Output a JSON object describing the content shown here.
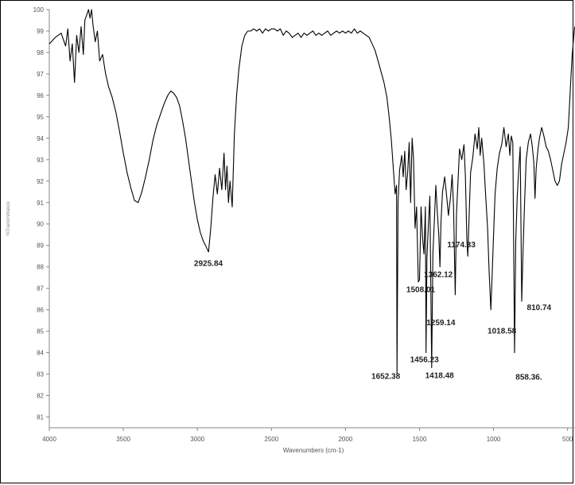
{
  "chart_data": {
    "type": "line",
    "xlabel": "Wavenumbers (cm-1)",
    "ylabel": "%Transmittance",
    "xlim": [
      4000,
      450
    ],
    "ylim": [
      80.5,
      100
    ],
    "x_ticks": [
      4000,
      3500,
      3000,
      2500,
      2000,
      1500,
      1000,
      500
    ],
    "y_ticks": [
      81,
      82,
      83,
      84,
      85,
      86,
      87,
      88,
      89,
      90,
      91,
      92,
      93,
      94,
      95,
      96,
      97,
      98,
      99,
      100
    ],
    "grid": false,
    "x_direction": "descending",
    "series": [
      {
        "color": "#000000",
        "points": [
          [
            4000,
            98.4
          ],
          [
            3960,
            98.7
          ],
          [
            3920,
            98.9
          ],
          [
            3890,
            98.3
          ],
          [
            3875,
            99.1
          ],
          [
            3860,
            97.6
          ],
          [
            3845,
            98.4
          ],
          [
            3830,
            96.6
          ],
          [
            3815,
            98.8
          ],
          [
            3800,
            98.0
          ],
          [
            3785,
            99.2
          ],
          [
            3770,
            97.9
          ],
          [
            3760,
            99.5
          ],
          [
            3745,
            99.8
          ],
          [
            3735,
            100.0
          ],
          [
            3725,
            99.6
          ],
          [
            3715,
            100.0
          ],
          [
            3705,
            99.3
          ],
          [
            3690,
            98.5
          ],
          [
            3675,
            99.0
          ],
          [
            3660,
            97.6
          ],
          [
            3640,
            97.9
          ],
          [
            3620,
            97.0
          ],
          [
            3600,
            96.4
          ],
          [
            3575,
            95.9
          ],
          [
            3550,
            95.2
          ],
          [
            3525,
            94.3
          ],
          [
            3500,
            93.3
          ],
          [
            3475,
            92.4
          ],
          [
            3450,
            91.7
          ],
          [
            3425,
            91.1
          ],
          [
            3400,
            91.0
          ],
          [
            3375,
            91.5
          ],
          [
            3350,
            92.2
          ],
          [
            3325,
            93.0
          ],
          [
            3300,
            93.9
          ],
          [
            3275,
            94.6
          ],
          [
            3250,
            95.1
          ],
          [
            3225,
            95.6
          ],
          [
            3200,
            96.0
          ],
          [
            3180,
            96.2
          ],
          [
            3160,
            96.1
          ],
          [
            3140,
            95.9
          ],
          [
            3120,
            95.5
          ],
          [
            3100,
            94.8
          ],
          [
            3080,
            94.0
          ],
          [
            3060,
            93.0
          ],
          [
            3040,
            92.0
          ],
          [
            3020,
            91.0
          ],
          [
            3000,
            90.2
          ],
          [
            2980,
            89.6
          ],
          [
            2960,
            89.2
          ],
          [
            2945,
            89.0
          ],
          [
            2925,
            88.7
          ],
          [
            2910,
            89.8
          ],
          [
            2895,
            91.2
          ],
          [
            2880,
            92.3
          ],
          [
            2865,
            91.4
          ],
          [
            2850,
            92.6
          ],
          [
            2835,
            91.6
          ],
          [
            2820,
            93.3
          ],
          [
            2810,
            91.6
          ],
          [
            2800,
            92.7
          ],
          [
            2790,
            91.0
          ],
          [
            2780,
            92.0
          ],
          [
            2765,
            90.8
          ],
          [
            2750,
            94.2
          ],
          [
            2735,
            96.0
          ],
          [
            2720,
            97.2
          ],
          [
            2700,
            98.3
          ],
          [
            2680,
            98.8
          ],
          [
            2660,
            99.0
          ],
          [
            2640,
            99.0
          ],
          [
            2620,
            99.1
          ],
          [
            2600,
            99.0
          ],
          [
            2580,
            99.1
          ],
          [
            2560,
            98.9
          ],
          [
            2540,
            99.1
          ],
          [
            2520,
            99.0
          ],
          [
            2500,
            99.1
          ],
          [
            2480,
            99.1
          ],
          [
            2460,
            99.0
          ],
          [
            2440,
            99.1
          ],
          [
            2420,
            98.8
          ],
          [
            2400,
            99.0
          ],
          [
            2380,
            98.9
          ],
          [
            2360,
            98.7
          ],
          [
            2340,
            98.8
          ],
          [
            2320,
            98.9
          ],
          [
            2300,
            98.7
          ],
          [
            2280,
            98.9
          ],
          [
            2260,
            98.8
          ],
          [
            2240,
            98.9
          ],
          [
            2220,
            99.0
          ],
          [
            2200,
            98.8
          ],
          [
            2180,
            98.9
          ],
          [
            2160,
            98.8
          ],
          [
            2140,
            98.9
          ],
          [
            2120,
            99.0
          ],
          [
            2100,
            98.8
          ],
          [
            2080,
            98.9
          ],
          [
            2060,
            99.0
          ],
          [
            2040,
            98.9
          ],
          [
            2020,
            99.0
          ],
          [
            2000,
            98.9
          ],
          [
            1980,
            99.0
          ],
          [
            1960,
            98.9
          ],
          [
            1940,
            99.1
          ],
          [
            1920,
            98.9
          ],
          [
            1900,
            99.0
          ],
          [
            1880,
            98.9
          ],
          [
            1860,
            98.8
          ],
          [
            1840,
            98.7
          ],
          [
            1820,
            98.4
          ],
          [
            1800,
            98.1
          ],
          [
            1780,
            97.6
          ],
          [
            1760,
            97.1
          ],
          [
            1740,
            96.6
          ],
          [
            1720,
            95.9
          ],
          [
            1705,
            95.0
          ],
          [
            1690,
            93.9
          ],
          [
            1675,
            92.4
          ],
          [
            1665,
            91.4
          ],
          [
            1655,
            91.8
          ],
          [
            1652,
            83.0
          ],
          [
            1645,
            91.0
          ],
          [
            1635,
            92.5
          ],
          [
            1620,
            93.2
          ],
          [
            1610,
            92.2
          ],
          [
            1600,
            93.4
          ],
          [
            1590,
            91.6
          ],
          [
            1580,
            92.4
          ],
          [
            1570,
            93.8
          ],
          [
            1560,
            91.0
          ],
          [
            1550,
            94.0
          ],
          [
            1540,
            93.0
          ],
          [
            1530,
            89.8
          ],
          [
            1520,
            90.8
          ],
          [
            1508,
            87.3
          ],
          [
            1500,
            87.4
          ],
          [
            1490,
            90.8
          ],
          [
            1480,
            89.4
          ],
          [
            1470,
            88.6
          ],
          [
            1460,
            90.8
          ],
          [
            1456,
            84.0
          ],
          [
            1450,
            88.4
          ],
          [
            1440,
            90.0
          ],
          [
            1430,
            91.3
          ],
          [
            1418,
            83.3
          ],
          [
            1410,
            88.6
          ],
          [
            1400,
            90.1
          ],
          [
            1390,
            91.8
          ],
          [
            1380,
            90.6
          ],
          [
            1370,
            89.5
          ],
          [
            1362,
            88.0
          ],
          [
            1355,
            90.1
          ],
          [
            1345,
            91.5
          ],
          [
            1330,
            92.2
          ],
          [
            1315,
            91.2
          ],
          [
            1305,
            90.4
          ],
          [
            1290,
            91.3
          ],
          [
            1280,
            92.3
          ],
          [
            1270,
            90.8
          ],
          [
            1259,
            86.7
          ],
          [
            1250,
            90.5
          ],
          [
            1240,
            92.0
          ],
          [
            1230,
            93.5
          ],
          [
            1215,
            93.0
          ],
          [
            1200,
            93.7
          ],
          [
            1190,
            92.2
          ],
          [
            1180,
            89.2
          ],
          [
            1174,
            88.5
          ],
          [
            1165,
            90.4
          ],
          [
            1155,
            92.4
          ],
          [
            1140,
            93.1
          ],
          [
            1125,
            94.2
          ],
          [
            1110,
            93.5
          ],
          [
            1100,
            94.5
          ],
          [
            1090,
            93.2
          ],
          [
            1080,
            94.0
          ],
          [
            1065,
            92.8
          ],
          [
            1055,
            91.5
          ],
          [
            1040,
            89.8
          ],
          [
            1030,
            87.8
          ],
          [
            1018,
            86.0
          ],
          [
            1010,
            87.5
          ],
          [
            1000,
            89.5
          ],
          [
            990,
            91.4
          ],
          [
            975,
            92.6
          ],
          [
            960,
            93.3
          ],
          [
            945,
            93.7
          ],
          [
            930,
            94.5
          ],
          [
            915,
            93.6
          ],
          [
            900,
            94.2
          ],
          [
            890,
            93.2
          ],
          [
            880,
            94.1
          ],
          [
            870,
            93.8
          ],
          [
            858,
            84.0
          ],
          [
            850,
            89.2
          ],
          [
            840,
            91.3
          ],
          [
            830,
            92.5
          ],
          [
            820,
            93.6
          ],
          [
            810,
            86.4
          ],
          [
            800,
            88.9
          ],
          [
            790,
            91.1
          ],
          [
            780,
            93.0
          ],
          [
            765,
            93.8
          ],
          [
            750,
            94.2
          ],
          [
            740,
            93.7
          ],
          [
            728,
            92.9
          ],
          [
            720,
            91.2
          ],
          [
            712,
            92.6
          ],
          [
            700,
            93.5
          ],
          [
            690,
            94.0
          ],
          [
            675,
            94.5
          ],
          [
            660,
            94.1
          ],
          [
            645,
            93.6
          ],
          [
            630,
            93.4
          ],
          [
            615,
            93.0
          ],
          [
            600,
            92.5
          ],
          [
            585,
            92.0
          ],
          [
            570,
            91.8
          ],
          [
            555,
            92.0
          ],
          [
            540,
            92.8
          ],
          [
            525,
            93.3
          ],
          [
            510,
            93.8
          ],
          [
            495,
            94.5
          ],
          [
            482,
            96.2
          ],
          [
            470,
            97.8
          ],
          [
            460,
            98.6
          ],
          [
            452,
            99.2
          ]
        ]
      }
    ],
    "annotations": [
      {
        "text": "2925.84",
        "x": 2925.84,
        "y": 88.2,
        "leader": false
      },
      {
        "text": "1652.38",
        "x": 1652.38,
        "y": 83.0,
        "leader": true
      },
      {
        "text": "1508.01",
        "x": 1508.01,
        "y": 87.3,
        "leader": true
      },
      {
        "text": "1456.23",
        "x": 1456.23,
        "y": 84.0,
        "leader": true
      },
      {
        "text": "1418.48",
        "x": 1418.48,
        "y": 83.3,
        "leader": true
      },
      {
        "text": "1362.12",
        "x": 1362.12,
        "y": 88.0,
        "leader": true
      },
      {
        "text": "1259.14",
        "x": 1259.14,
        "y": 86.7,
        "leader": true
      },
      {
        "text": "1174.33",
        "x": 1174.33,
        "y": 88.5,
        "leader": true
      },
      {
        "text": "1018.58",
        "x": 1018.58,
        "y": 86.0,
        "leader": true
      },
      {
        "text": "858.36.",
        "x": 858.36,
        "y": 84.0,
        "leader": true
      },
      {
        "text": "810.74",
        "x": 810.74,
        "y": 86.4,
        "leader": true
      }
    ]
  }
}
